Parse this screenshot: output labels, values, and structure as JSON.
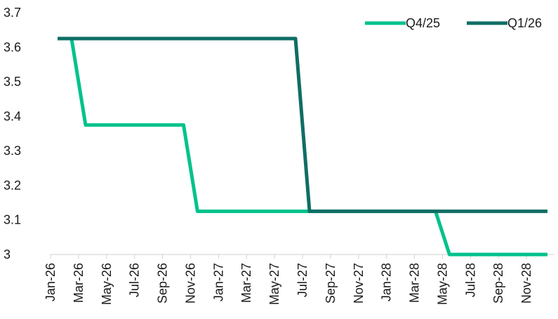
{
  "chart_data": {
    "type": "line",
    "title": "",
    "xlabel": "",
    "ylabel": "",
    "ylim": [
      3.0,
      3.7
    ],
    "yticks": [
      "3",
      "3.1",
      "3.2",
      "3.3",
      "3.4",
      "3.5",
      "3.6",
      "3.7"
    ],
    "grid": false,
    "legend_position": "top-right",
    "categories": [
      "Jan-26",
      "Feb-26",
      "Mar-26",
      "Apr-26",
      "May-26",
      "Jun-26",
      "Jul-26",
      "Aug-26",
      "Sep-26",
      "Oct-26",
      "Nov-26",
      "Dec-26",
      "Jan-27",
      "Feb-27",
      "Mar-27",
      "Apr-27",
      "May-27",
      "Jun-27",
      "Jul-27",
      "Aug-27",
      "Sep-27",
      "Oct-27",
      "Nov-27",
      "Dec-27",
      "Jan-28",
      "Feb-28",
      "Mar-28",
      "Apr-28",
      "May-28",
      "Jun-28",
      "Jul-28",
      "Aug-28",
      "Sep-28",
      "Oct-28",
      "Nov-28",
      "Dec-28"
    ],
    "tick_labels": [
      "Jan-26",
      "Mar-26",
      "May-26",
      "Jul-26",
      "Sep-26",
      "Nov-26",
      "Jan-27",
      "Mar-27",
      "May-27",
      "Jul-27",
      "Sep-27",
      "Nov-27",
      "Jan-28",
      "Mar-28",
      "May-28",
      "Jul-28",
      "Sep-28",
      "Nov-28"
    ],
    "series": [
      {
        "name": "Q4/25",
        "color": "#00c28c",
        "values": [
          3.625,
          3.625,
          3.375,
          3.375,
          3.375,
          3.375,
          3.375,
          3.375,
          3.375,
          3.375,
          3.125,
          3.125,
          3.125,
          3.125,
          3.125,
          3.125,
          3.125,
          3.125,
          3.125,
          3.125,
          3.125,
          3.125,
          3.125,
          3.125,
          3.125,
          3.125,
          3.125,
          3.125,
          3.0,
          3.0,
          3.0,
          3.0,
          3.0,
          3.0,
          3.0,
          3.0
        ]
      },
      {
        "name": "Q1/26",
        "color": "#0f6e64",
        "values": [
          3.625,
          3.625,
          3.625,
          3.625,
          3.625,
          3.625,
          3.625,
          3.625,
          3.625,
          3.625,
          3.625,
          3.625,
          3.625,
          3.625,
          3.625,
          3.625,
          3.625,
          3.625,
          3.125,
          3.125,
          3.125,
          3.125,
          3.125,
          3.125,
          3.125,
          3.125,
          3.125,
          3.125,
          3.125,
          3.125,
          3.125,
          3.125,
          3.125,
          3.125,
          3.125,
          3.125
        ]
      }
    ]
  }
}
